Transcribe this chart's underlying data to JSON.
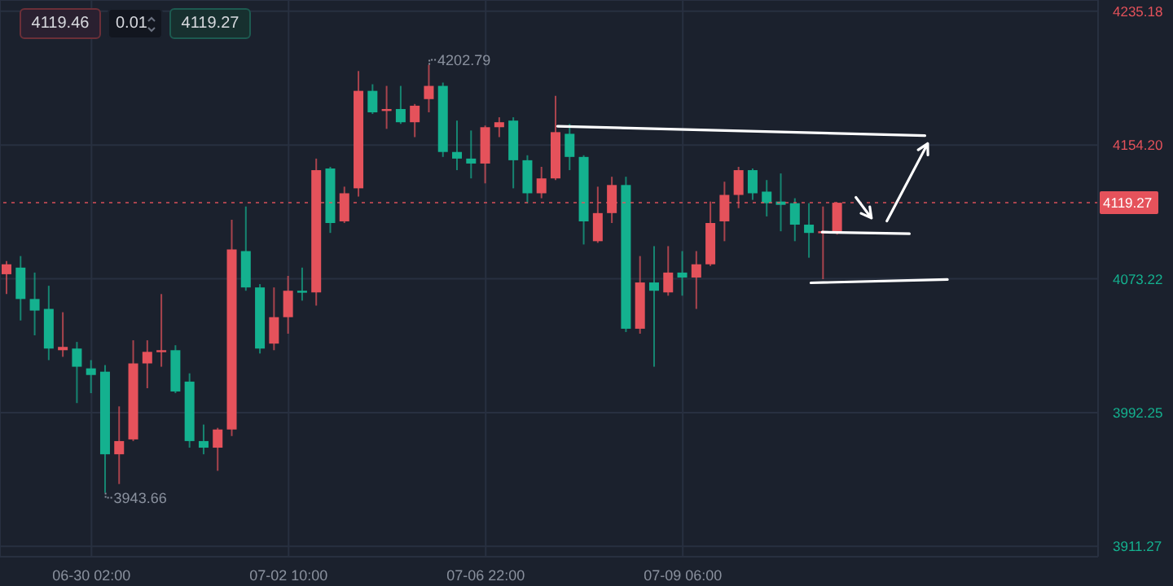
{
  "chart_data": {
    "type": "candlestick",
    "categories": [
      null,
      null,
      null,
      null,
      null,
      null,
      "06-30 02:00",
      null,
      null,
      null,
      null,
      null,
      null,
      null,
      null,
      null,
      null,
      null,
      null,
      null,
      "07-02 10:00",
      null,
      null,
      null,
      null,
      null,
      null,
      null,
      null,
      null,
      null,
      null,
      null,
      null,
      "07-06 22:00",
      null,
      null,
      null,
      null,
      null,
      null,
      null,
      null,
      null,
      null,
      null,
      null,
      null,
      "07-09 06:00",
      null,
      null,
      null,
      null,
      null,
      null,
      null,
      null,
      null,
      null,
      null,
      null,
      null,
      null,
      null,
      null,
      null,
      null,
      null,
      null,
      null,
      null,
      null,
      null,
      null,
      null,
      null,
      null,
      null
    ],
    "ohlc": [
      [
        4076,
        4084,
        4064,
        4082
      ],
      [
        4080,
        4087,
        4048,
        4061
      ],
      [
        4061,
        4077,
        4039,
        4054
      ],
      [
        4055,
        4069,
        4024,
        4031
      ],
      [
        4030,
        4053,
        4026,
        4032
      ],
      [
        4031,
        4035,
        3998,
        4020
      ],
      [
        4019,
        4024,
        4004,
        4015
      ],
      [
        4017,
        4021,
        3943.66,
        3967
      ],
      [
        3967,
        3996,
        3949,
        3975
      ],
      [
        3976,
        4036,
        3975,
        4022
      ],
      [
        4022,
        4036,
        4007,
        4029
      ],
      [
        4029,
        4064,
        4020,
        4030
      ],
      [
        4030,
        4033,
        4004,
        4005
      ],
      [
        4011,
        4016,
        3971,
        3975
      ],
      [
        3975,
        3985,
        3967,
        3971
      ],
      [
        3971,
        3983,
        3957,
        3982
      ],
      [
        3982,
        4109,
        3978,
        4091
      ],
      [
        4090,
        4117,
        4066,
        4068
      ],
      [
        4068,
        4070,
        4028,
        4031
      ],
      [
        4034,
        4068,
        4030,
        4050
      ],
      [
        4050,
        4075,
        4040,
        4066
      ],
      [
        4066,
        4080,
        4060,
        4065
      ],
      [
        4065,
        4146,
        4057,
        4139
      ],
      [
        4140,
        4141,
        4101,
        4107
      ],
      [
        4108,
        4129,
        4107,
        4125
      ],
      [
        4128,
        4199,
        4123,
        4187
      ],
      [
        4187,
        4191,
        4173,
        4174
      ],
      [
        4175,
        4190,
        4164,
        4176
      ],
      [
        4176,
        4190,
        4167,
        4168
      ],
      [
        4168,
        4179,
        4159,
        4178
      ],
      [
        4182,
        4202.79,
        4174,
        4190
      ],
      [
        4190,
        4192,
        4147,
        4150
      ],
      [
        4150,
        4169,
        4139,
        4146
      ],
      [
        4146,
        4163,
        4134,
        4143
      ],
      [
        4143,
        4166,
        4131,
        4165
      ],
      [
        4165,
        4171,
        4159,
        4168
      ],
      [
        4169,
        4171,
        4128,
        4145
      ],
      [
        4145,
        4148,
        4119,
        4125
      ],
      [
        4125,
        4141,
        4122,
        4134
      ],
      [
        4134,
        4184,
        4133,
        4162
      ],
      [
        4161,
        4167,
        4139,
        4147
      ],
      [
        4147,
        4148,
        4094,
        4108
      ],
      [
        4096,
        4129,
        4095,
        4113
      ],
      [
        4113,
        4135,
        4107,
        4130
      ],
      [
        4130,
        4135,
        4041,
        4043
      ],
      [
        4043,
        4087,
        4040,
        4071
      ],
      [
        4071,
        4093,
        4020,
        4066
      ],
      [
        4065,
        4093,
        4063,
        4077
      ],
      [
        4077,
        4090,
        4063,
        4074
      ],
      [
        4074,
        4090,
        4055,
        4082
      ],
      [
        4082,
        4120,
        4081,
        4107
      ],
      [
        4108,
        4132,
        4096,
        4124
      ],
      [
        4124,
        4141,
        4116,
        4139
      ],
      [
        4139,
        4140,
        4121,
        4125
      ],
      [
        4126,
        4133,
        4111,
        4119
      ],
      [
        4120,
        4137,
        4102,
        4118
      ],
      [
        4119,
        4122,
        4096,
        4106
      ],
      [
        4106,
        4119,
        4086,
        4101
      ],
      [
        4101,
        4117,
        4073,
        4102
      ],
      [
        4101,
        4119.27,
        4100,
        4119.27
      ],
      null,
      null,
      null,
      null,
      null,
      null,
      null,
      null,
      null,
      null,
      null,
      null,
      null,
      null,
      null,
      null,
      null,
      null
    ],
    "colors": [
      "#e5525b",
      "#14b18f",
      "#14b18f",
      "#14b18f",
      "#e5525b",
      "#14b18f",
      "#14b18f",
      "#14b18f",
      "#e5525b",
      "#e5525b",
      "#e5525b",
      "#e5525b",
      "#14b18f",
      "#14b18f",
      "#14b18f",
      "#e5525b",
      "#e5525b",
      "#14b18f",
      "#14b18f",
      "#e5525b",
      "#e5525b",
      "#14b18f",
      "#e5525b",
      "#14b18f",
      "#e5525b",
      "#e5525b",
      "#14b18f",
      "#e5525b",
      "#14b18f",
      "#e5525b",
      "#e5525b",
      "#14b18f",
      "#14b18f",
      "#14b18f",
      "#e5525b",
      "#e5525b",
      "#14b18f",
      "#14b18f",
      "#e5525b",
      "#e5525b",
      "#14b18f",
      "#14b18f",
      "#e5525b",
      "#e5525b",
      "#14b18f",
      "#e5525b",
      "#14b18f",
      "#e5525b",
      "#14b18f",
      "#e5525b",
      "#e5525b",
      "#e5525b",
      "#e5525b",
      "#14b18f",
      "#14b18f",
      "#14b18f",
      "#14b18f",
      "#14b18f",
      "#e5525b",
      "#e5525b",
      null,
      null,
      null,
      null,
      null,
      null,
      null,
      null,
      null,
      null,
      null,
      null,
      null,
      null,
      null,
      null,
      null,
      null
    ],
    "ylim": [
      3905,
      4242
    ],
    "yticks": [
      3911.27,
      3992.25,
      4073.22,
      {
        "value": 4154.2,
        "label": "4154.20"
      },
      4235.18
    ],
    "grid": true,
    "ref_lines": [
      {
        "axis": "y",
        "value": 4119.27,
        "label": "4119.27",
        "color": "#e5525b",
        "line_style": "dotted"
      }
    ],
    "annotations": [
      "4119.46",
      "0.01",
      "4119.27",
      "4202.79",
      "3943.66"
    ]
  }
}
